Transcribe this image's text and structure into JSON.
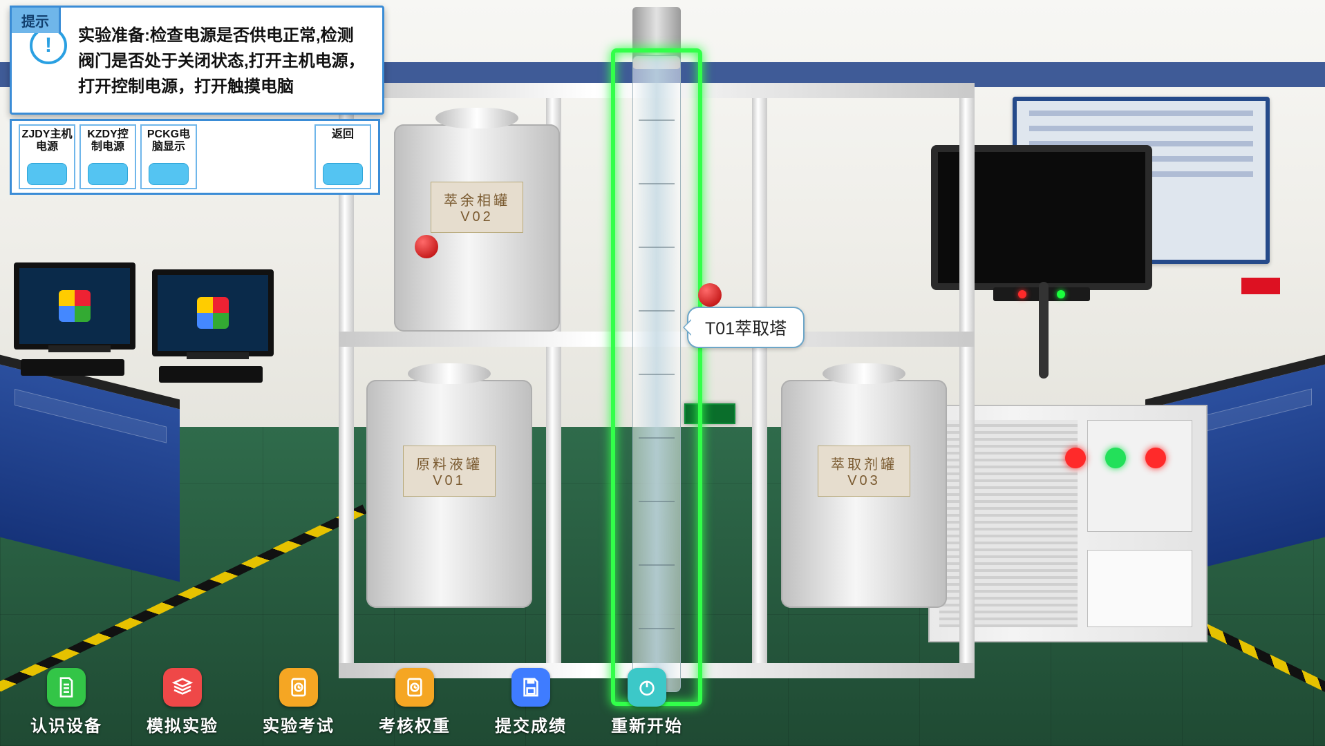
{
  "colors": {
    "panel_border": "#3a8cd6",
    "btn_blue": "#54c4f2",
    "highlight_green": "#32ff4a",
    "tb_green": "#33c547",
    "tb_red": "#ef4848",
    "tb_orange": "#f5a623",
    "tb_orange2": "#f5a623",
    "tb_blue": "#3f7cff",
    "tb_teal": "#3cc8c8"
  },
  "hint": {
    "tab": "提示",
    "text": "实验准备:检查电源是否供电正常,检测阀门是否处于关闭状态,打开主机电源，打开控制电源，打开触摸电脑"
  },
  "controls": [
    {
      "label": "ZJDY主机电源"
    },
    {
      "label": "KZDY控制电源"
    },
    {
      "label": "PCKG电脑显示"
    }
  ],
  "return_label": "返回",
  "tooltip": "T01萃取塔",
  "tanks": {
    "t1": "萃余相罐\nV02",
    "t2": "原料液罐\nV01",
    "t3": "萃取剂罐\nV03"
  },
  "toolbar": [
    {
      "label": "认识设备",
      "color": "#33c547",
      "icon": "doc"
    },
    {
      "label": "模拟实验",
      "color": "#ef4848",
      "icon": "stack"
    },
    {
      "label": "实验考试",
      "color": "#f5a623",
      "icon": "clock"
    },
    {
      "label": "考核权重",
      "color": "#f5a623",
      "icon": "clock"
    },
    {
      "label": "提交成绩",
      "color": "#3f7cff",
      "icon": "save"
    },
    {
      "label": "重新开始",
      "color": "#3cc8c8",
      "icon": "power"
    }
  ]
}
